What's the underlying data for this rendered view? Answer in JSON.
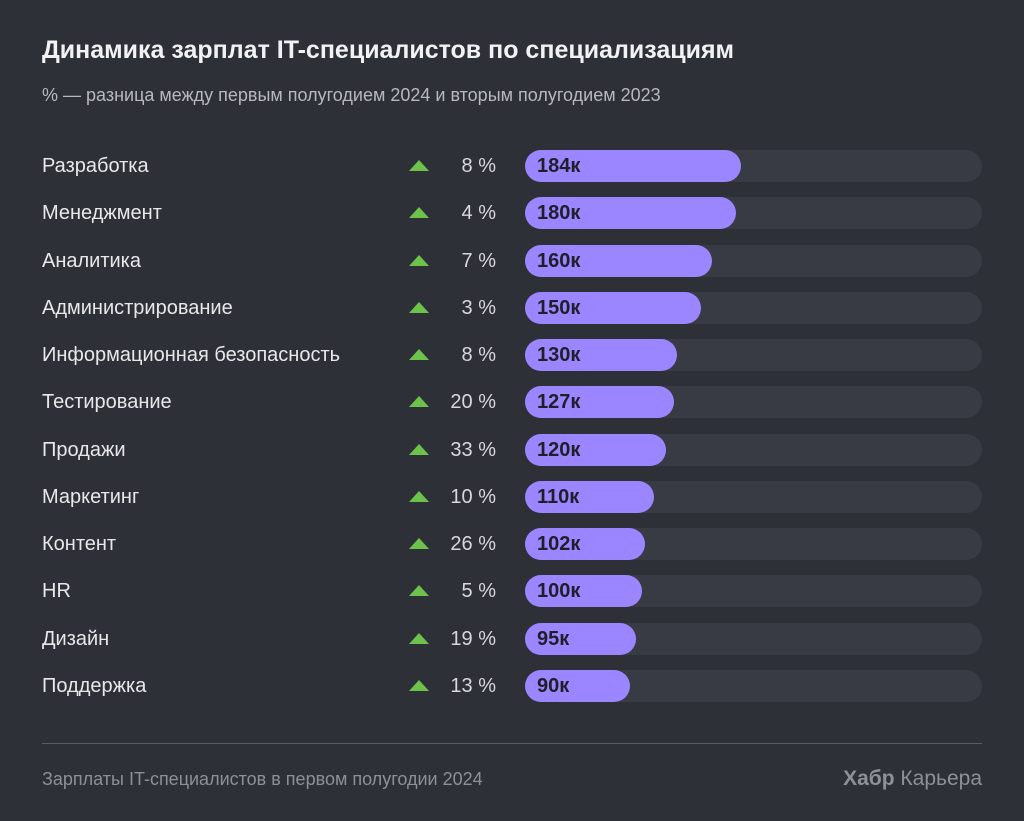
{
  "title": "Динамика зарплат IT-специалистов по специализациям",
  "subtitle": "% — разница между первым полугодием 2024 и вторым полугодием 2023",
  "footnote": "Зарплаты IT-специалистов в первом полугодии 2024",
  "brand": {
    "bold": "Хабр",
    "regular": "Карьера"
  },
  "colors": {
    "background": "#2e3038",
    "bar": "#9b86ff",
    "track": "#393b44",
    "up_arrow": "#6cc24a"
  },
  "chart_data": {
    "type": "bar",
    "orientation": "horizontal",
    "title": "Динамика зарплат IT-специалистов по специализациям",
    "subtitle": "% — разница между первым полугодием 2024 и вторым полугодием 2023",
    "xlim": [
      0,
      390
    ],
    "grid": false,
    "categories": [
      "Разработка",
      "Менеджмент",
      "Аналитика",
      "Администрирование",
      "Информационная безопасность",
      "Тестирование",
      "Продажи",
      "Маркетинг",
      "Контент",
      "HR",
      "Дизайн",
      "Поддержка"
    ],
    "values": [
      184,
      180,
      160,
      150,
      130,
      127,
      120,
      110,
      102,
      100,
      95,
      90
    ],
    "value_labels": [
      "184к",
      "180к",
      "160к",
      "150к",
      "130к",
      "127к",
      "120к",
      "110к",
      "102к",
      "100к",
      "95к",
      "90к"
    ],
    "change_pct": [
      8,
      4,
      7,
      3,
      8,
      20,
      33,
      10,
      26,
      5,
      19,
      13
    ],
    "change_labels": [
      "8 %",
      "4 %",
      "7 %",
      "3 %",
      "8 %",
      "20 %",
      "33 %",
      "10 %",
      "26 %",
      "5 %",
      "19 %",
      "13 %"
    ],
    "change_icon": "triangle-up-icon"
  }
}
